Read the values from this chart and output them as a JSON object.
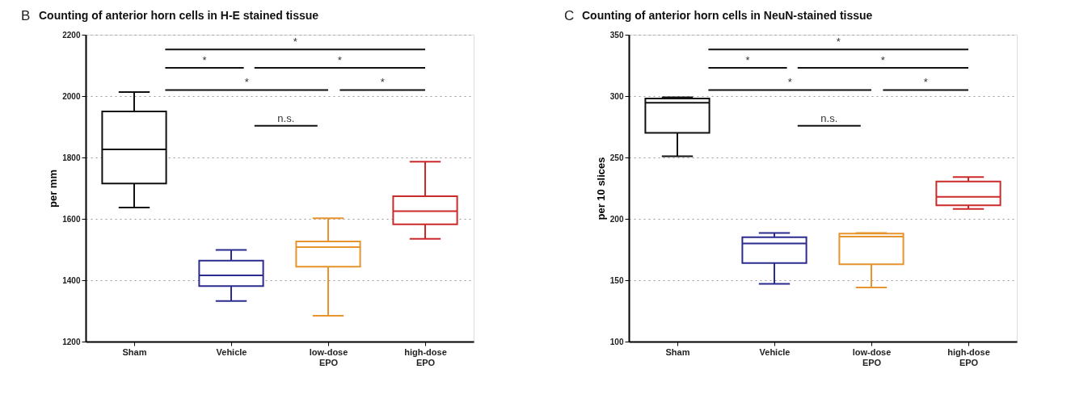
{
  "chart_data": [
    {
      "type": "box",
      "title": "Counting of anterior horn cells in H-E stained tissue",
      "ylabel": "per mm",
      "categories": [
        "Sham",
        "Vehicle",
        "low-dose EPO",
        "high-dose EPO"
      ],
      "colors": [
        "#111111",
        "#2b2b8f",
        "#e8942e",
        "#cc2a2a"
      ],
      "boxes": [
        {
          "low": 1637,
          "q1": 1715,
          "median": 1826,
          "q3": 1950,
          "high": 2013
        },
        {
          "low": 1332,
          "q1": 1381,
          "median": 1416,
          "q3": 1464,
          "high": 1499
        },
        {
          "low": 1284,
          "q1": 1444,
          "median": 1508,
          "q3": 1526,
          "high": 1602
        },
        {
          "low": 1535,
          "q1": 1582,
          "median": 1625,
          "q3": 1674,
          "high": 1786
        }
      ],
      "ylim": [
        1200,
        2200
      ],
      "yticks": [
        1200,
        1400,
        1600,
        1800,
        2000,
        2200
      ],
      "grid": "y",
      "annotations": [
        "B",
        "*",
        "*",
        "*",
        "*",
        "*",
        "n.s."
      ]
    },
    {
      "type": "box",
      "title": "Counting of anterior horn cells in NeuN-stained tissue",
      "ylabel": "per 10 slices",
      "categories": [
        "Sham",
        "Vehicle",
        "low-dose EPO",
        "high-dose EPO"
      ],
      "colors": [
        "#111111",
        "#2b2b8f",
        "#e8942e",
        "#cc2a2a"
      ],
      "boxes": [
        {
          "low": 251,
          "q1": 270,
          "median": 294.5,
          "q3": 298,
          "high": 299
        },
        {
          "low": 147,
          "q1": 164,
          "median": 180,
          "q3": 185,
          "high": 188.5
        },
        {
          "low": 144,
          "q1": 163,
          "median": 185.5,
          "q3": 188,
          "high": 188.5
        },
        {
          "low": 208,
          "q1": 211,
          "median": 218,
          "q3": 230.5,
          "high": 234
        }
      ],
      "ylim": [
        100,
        350
      ],
      "yticks": [
        100,
        150,
        200,
        250,
        300,
        350
      ],
      "grid": "y",
      "annotations": [
        "C",
        "*",
        "*",
        "*",
        "*",
        "*",
        "n.s."
      ]
    }
  ]
}
